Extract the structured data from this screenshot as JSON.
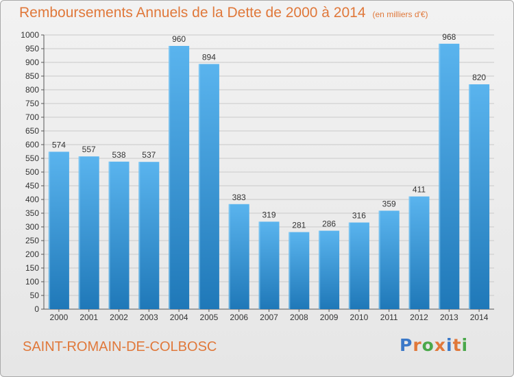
{
  "title": "Remboursements Annuels de la Dette de 2000 à 2014",
  "unit_note": "(en milliers d'€)",
  "city": "SAINT-ROMAIN-DE-COLBOSC",
  "logo": {
    "text": "Proxiti",
    "letter_colors": [
      "#3a78c8",
      "#e0783a",
      "#4aa84a",
      "#e0783a",
      "#3a78c8",
      "#e0783a",
      "#4aa84a"
    ]
  },
  "colors": {
    "title": "#e0783a",
    "bar_top": "#5ab4ee",
    "bar_bottom": "#1f78b8",
    "grid": "#c9c9c9"
  },
  "chart_data": {
    "type": "bar",
    "title": "Remboursements Annuels de la Dette de 2000 à 2014",
    "categories": [
      "2000",
      "2001",
      "2002",
      "2003",
      "2004",
      "2005",
      "2006",
      "2007",
      "2008",
      "2009",
      "2010",
      "2011",
      "2012",
      "2013",
      "2014"
    ],
    "values": [
      574,
      557,
      538,
      537,
      960,
      894,
      383,
      319,
      281,
      286,
      316,
      359,
      411,
      968,
      820
    ],
    "ylim": [
      0,
      1000
    ],
    "ytick_step": 50,
    "grid": true,
    "data_labels": true
  }
}
